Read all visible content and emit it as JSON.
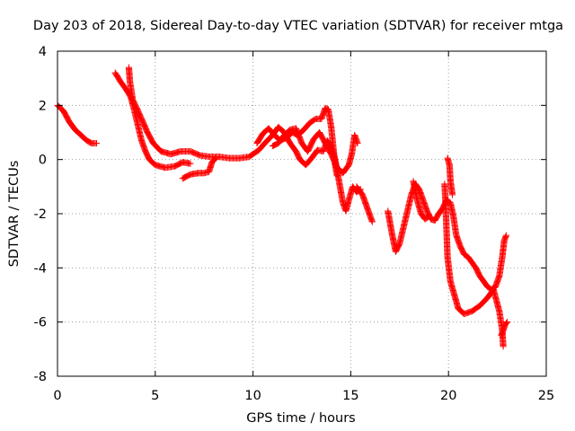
{
  "chart_data": {
    "type": "scatter",
    "title": "Day 203 of 2018, Sidereal Day-to-day VTEC variation (SDTVAR) for receiver mtga",
    "xlabel": "GPS time / hours",
    "ylabel": "SDTVAR / TECUs",
    "xlim": [
      0,
      25
    ],
    "ylim": [
      -8,
      4
    ],
    "xticks": [
      0,
      5,
      10,
      15,
      20,
      25
    ],
    "yticks": [
      -8,
      -6,
      -4,
      -2,
      0,
      2,
      4
    ],
    "grid": true,
    "marker": "+",
    "marker_color": "#ff0000",
    "series": [
      {
        "name": "SDTVAR",
        "segments": [
          [
            [
              0.0,
              2.0
            ],
            [
              0.3,
              1.8
            ],
            [
              0.6,
              1.4
            ],
            [
              0.9,
              1.1
            ],
            [
              1.2,
              0.9
            ],
            [
              1.5,
              0.7
            ],
            [
              1.75,
              0.6
            ],
            [
              2.0,
              0.6
            ]
          ],
          [
            [
              2.95,
              3.2
            ],
            [
              3.2,
              2.9
            ],
            [
              3.5,
              2.6
            ],
            [
              3.75,
              2.3
            ],
            [
              3.9,
              1.9
            ],
            [
              4.1,
              1.3
            ],
            [
              4.3,
              0.7
            ],
            [
              4.5,
              0.3
            ],
            [
              4.7,
              0.0
            ],
            [
              5.0,
              -0.2
            ],
            [
              5.5,
              -0.3
            ],
            [
              6.0,
              -0.25
            ],
            [
              6.4,
              -0.1
            ],
            [
              6.8,
              -0.15
            ]
          ],
          [
            [
              3.65,
              3.4
            ],
            [
              3.7,
              2.9
            ],
            [
              3.85,
              2.2
            ],
            [
              4.05,
              1.9
            ],
            [
              4.3,
              1.5
            ],
            [
              4.6,
              1.0
            ],
            [
              4.9,
              0.6
            ],
            [
              5.3,
              0.3
            ],
            [
              5.8,
              0.2
            ],
            [
              6.3,
              0.3
            ],
            [
              6.8,
              0.3
            ],
            [
              7.3,
              0.15
            ],
            [
              7.8,
              0.1
            ],
            [
              8.3,
              0.1
            ],
            [
              8.8,
              0.05
            ],
            [
              9.3,
              0.05
            ],
            [
              9.8,
              0.1
            ],
            [
              10.3,
              0.35
            ],
            [
              10.6,
              0.6
            ],
            [
              11.0,
              0.9
            ],
            [
              11.3,
              1.2
            ],
            [
              11.6,
              1.0
            ],
            [
              11.9,
              0.6
            ],
            [
              12.2,
              0.3
            ],
            [
              12.4,
              0.0
            ],
            [
              12.7,
              -0.2
            ],
            [
              13.0,
              0.05
            ],
            [
              13.3,
              0.35
            ],
            [
              13.6,
              0.3
            ],
            [
              13.8,
              0.7
            ],
            [
              14.0,
              0.5
            ],
            [
              14.2,
              0.0
            ],
            [
              14.4,
              -0.8
            ],
            [
              14.6,
              -1.6
            ],
            [
              14.75,
              -1.9
            ],
            [
              14.9,
              -1.5
            ],
            [
              15.1,
              -1.0
            ],
            [
              15.3,
              -1.2
            ],
            [
              15.5,
              -1.1
            ]
          ],
          [
            [
              6.4,
              -0.7
            ],
            [
              6.8,
              -0.55
            ],
            [
              7.2,
              -0.5
            ],
            [
              7.5,
              -0.5
            ],
            [
              7.75,
              -0.45
            ],
            [
              7.9,
              -0.1
            ],
            [
              8.1,
              0.05
            ]
          ],
          [
            [
              10.2,
              0.6
            ],
            [
              10.5,
              0.95
            ],
            [
              10.8,
              1.15
            ],
            [
              11.1,
              0.9
            ],
            [
              11.4,
              0.7
            ],
            [
              11.7,
              0.8
            ],
            [
              12.0,
              1.0
            ],
            [
              12.3,
              0.9
            ],
            [
              12.6,
              1.1
            ],
            [
              12.9,
              1.35
            ],
            [
              13.2,
              1.5
            ],
            [
              13.5,
              1.5
            ],
            [
              13.7,
              1.9
            ],
            [
              13.85,
              1.85
            ],
            [
              14.0,
              1.2
            ],
            [
              14.1,
              0.5
            ],
            [
              14.2,
              -0.2
            ],
            [
              14.3,
              -0.6
            ]
          ],
          [
            [
              11.0,
              0.5
            ],
            [
              11.3,
              0.6
            ],
            [
              11.6,
              0.9
            ],
            [
              11.9,
              1.1
            ],
            [
              12.2,
              1.15
            ],
            [
              12.5,
              0.6
            ],
            [
              12.8,
              0.3
            ],
            [
              13.1,
              0.75
            ],
            [
              13.4,
              1.0
            ],
            [
              13.7,
              0.6
            ],
            [
              14.0,
              0.2
            ],
            [
              14.3,
              -0.3
            ],
            [
              14.6,
              -0.5
            ],
            [
              14.9,
              -0.2
            ],
            [
              15.05,
              0.2
            ],
            [
              15.2,
              0.9
            ],
            [
              15.35,
              0.6
            ]
          ],
          [
            [
              15.3,
              -1.0
            ],
            [
              15.6,
              -1.3
            ],
            [
              15.9,
              -1.9
            ],
            [
              16.1,
              -2.3
            ]
          ],
          [
            [
              16.9,
              -1.9
            ],
            [
              17.1,
              -2.7
            ],
            [
              17.3,
              -3.4
            ],
            [
              17.5,
              -3.1
            ],
            [
              17.7,
              -2.5
            ],
            [
              17.9,
              -1.9
            ],
            [
              18.1,
              -1.3
            ],
            [
              18.3,
              -0.9
            ],
            [
              18.5,
              -1.1
            ],
            [
              18.7,
              -1.5
            ],
            [
              18.9,
              -1.9
            ],
            [
              19.1,
              -2.2
            ],
            [
              19.3,
              -2.25
            ],
            [
              19.5,
              -2.0
            ],
            [
              19.7,
              -1.8
            ],
            [
              19.9,
              -1.5
            ],
            [
              20.1,
              -1.6
            ],
            [
              20.25,
              -2.1
            ],
            [
              20.4,
              -2.8
            ],
            [
              20.6,
              -3.2
            ],
            [
              20.8,
              -3.5
            ],
            [
              21.0,
              -3.6
            ],
            [
              21.2,
              -3.8
            ],
            [
              21.4,
              -4.0
            ],
            [
              21.6,
              -4.3
            ],
            [
              21.8,
              -4.5
            ],
            [
              22.0,
              -4.7
            ],
            [
              22.2,
              -4.8
            ],
            [
              22.4,
              -4.7
            ],
            [
              22.6,
              -4.3
            ],
            [
              22.75,
              -3.6
            ],
            [
              22.85,
              -3.0
            ],
            [
              22.95,
              -2.8
            ]
          ],
          [
            [
              18.2,
              -0.8
            ],
            [
              18.4,
              -1.5
            ],
            [
              18.6,
              -2.0
            ],
            [
              18.8,
              -2.2
            ],
            [
              19.0,
              -2.1
            ]
          ],
          [
            [
              19.8,
              -0.9
            ],
            [
              19.85,
              -1.6
            ],
            [
              19.9,
              -2.6
            ],
            [
              19.95,
              -3.6
            ],
            [
              20.1,
              -4.5
            ],
            [
              20.3,
              -5.0
            ],
            [
              20.5,
              -5.5
            ],
            [
              20.8,
              -5.7
            ],
            [
              21.2,
              -5.6
            ],
            [
              21.6,
              -5.4
            ],
            [
              22.0,
              -5.1
            ],
            [
              22.3,
              -4.8
            ],
            [
              22.6,
              -5.6
            ],
            [
              22.75,
              -6.3
            ],
            [
              22.8,
              -6.9
            ]
          ],
          [
            [
              19.95,
              0.05
            ],
            [
              20.05,
              -0.2
            ],
            [
              20.1,
              -0.8
            ],
            [
              20.2,
              -1.3
            ]
          ],
          [
            [
              22.7,
              -6.5
            ],
            [
              22.9,
              -6.1
            ],
            [
              23.0,
              -6.0
            ]
          ]
        ]
      }
    ]
  }
}
